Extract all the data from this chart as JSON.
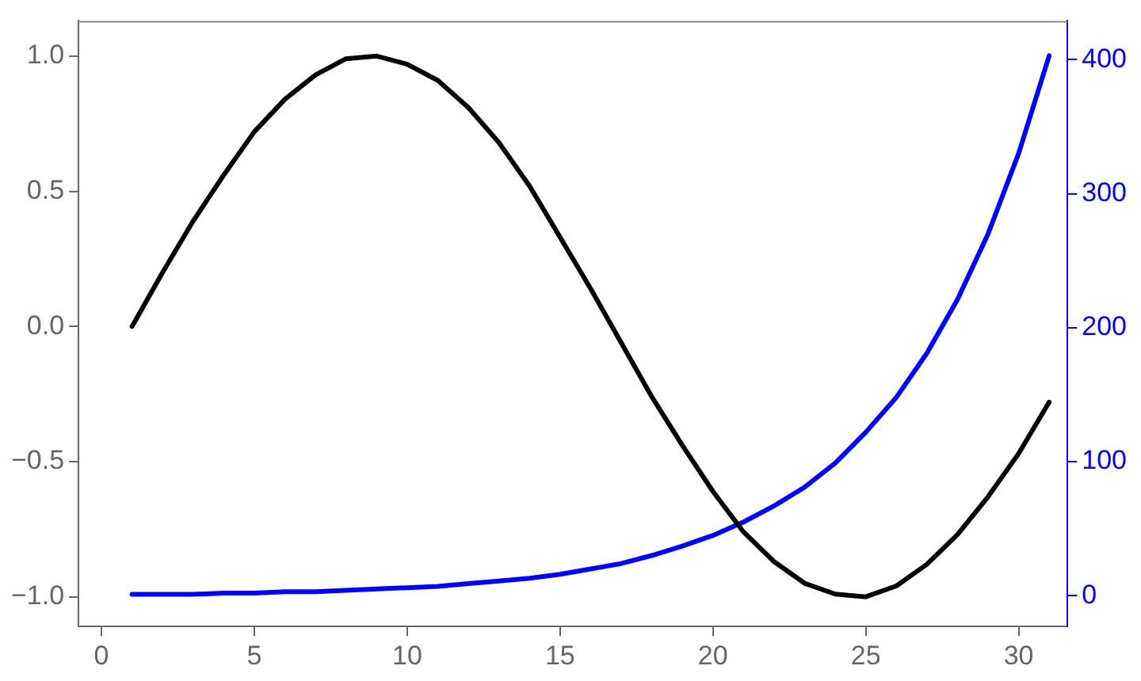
{
  "chart_data": {
    "type": "line",
    "x": [
      1,
      2,
      3,
      4,
      5,
      6,
      7,
      8,
      9,
      10,
      11,
      12,
      13,
      14,
      15,
      16,
      17,
      18,
      19,
      20,
      21,
      22,
      23,
      24,
      25,
      26,
      27,
      28,
      29,
      30,
      31
    ],
    "series": [
      {
        "color": "#000000",
        "values": [
          0,
          0.2,
          0.39,
          0.56,
          0.72,
          0.84,
          0.93,
          0.99,
          1.0,
          0.97,
          0.91,
          0.81,
          0.68,
          0.52,
          0.33,
          0.14,
          -0.06,
          -0.26,
          -0.44,
          -0.61,
          -0.76,
          -0.87,
          -0.95,
          -0.99,
          -1.0,
          -0.96,
          -0.88,
          -0.77,
          -0.63,
          -0.47,
          -0.28
        ]
      },
      {
        "color": "#0000ff",
        "axis": "y2",
        "values": [
          1,
          1,
          1,
          2,
          2,
          3,
          3,
          4,
          5,
          6,
          7,
          9,
          11,
          13,
          16,
          20,
          24,
          30,
          37,
          45,
          55,
          67,
          81,
          99,
          122,
          148,
          181,
          221,
          270,
          330,
          403
        ]
      }
    ],
    "xlim": [
      -0.75,
      31.6
    ],
    "xticks": [
      0,
      5,
      10,
      15,
      20,
      25,
      30
    ],
    "ylim": [
      -1.11,
      1.13
    ],
    "yticks": [
      {
        "value": -1,
        "label": "−1.0"
      },
      {
        "value": -0.5,
        "label": "−0.5"
      },
      {
        "value": 0,
        "label": "0.0"
      },
      {
        "value": 0.5,
        "label": "0.5"
      },
      {
        "value": 1,
        "label": "1.0"
      }
    ],
    "y2lim": [
      -23,
      429
    ],
    "y2ticks": [
      0,
      100,
      200,
      300,
      400
    ],
    "grid": false,
    "legend": false,
    "marker": "none",
    "line_style": "solid"
  }
}
